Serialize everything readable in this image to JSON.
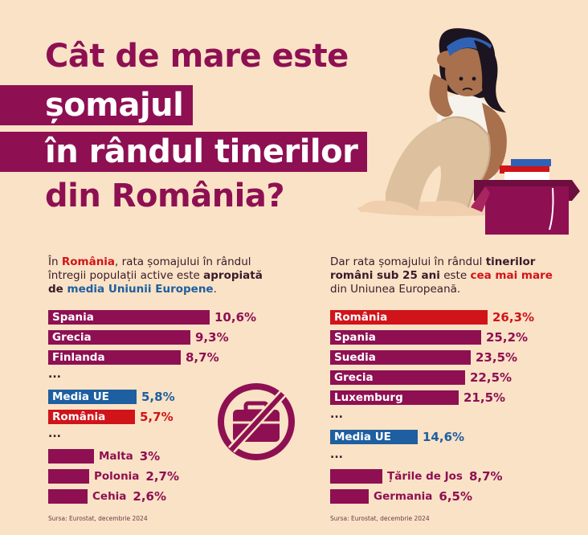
{
  "title": {
    "line1": "Cât de mare este",
    "line2": "șomajul",
    "line3": "în rândul tinerilor",
    "line4": "din România?"
  },
  "colors": {
    "primary": "#8e1052",
    "romania": "#d0141a",
    "eu_average": "#1d5fa0",
    "background": "#fae2c6"
  },
  "left_panel": {
    "intro": {
      "p1": "În ",
      "p2": "România",
      "p3": ", rata șomajului în rândul întregii populații active este ",
      "p4": "apropiată de ",
      "p5": "media Uniunii Europene",
      "p6": "."
    },
    "ellipsis1": "...",
    "ellipsis2": "...",
    "source": "Sursa: Eurostat, decembrie 2024"
  },
  "right_panel": {
    "intro": {
      "p1": "Dar rata șomajului în rândul ",
      "p2": "tinerilor români sub 25 ani",
      "p3": " este ",
      "p4": "cea mai mare",
      "p5": " din Uniunea Europeană."
    },
    "ellipsis1": "...",
    "ellipsis2": "...",
    "source": "Sursa: Eurostat, decembrie 2024"
  },
  "chart_data": [
    {
      "type": "bar",
      "orientation": "horizontal",
      "categories": [
        "Spania",
        "Grecia",
        "Finlanda",
        "Media UE",
        "România",
        "Malta",
        "Polonia",
        "Cehia"
      ],
      "values": [
        10.6,
        9.3,
        8.7,
        5.8,
        5.7,
        3,
        2.7,
        2.6
      ],
      "value_labels": [
        "10,6%",
        "9,3%",
        "8,7%",
        "5,8%",
        "5,7%",
        "3%",
        "2,7%",
        "2,6%"
      ],
      "unit": "%"
    },
    {
      "type": "bar",
      "orientation": "horizontal",
      "categories": [
        "România",
        "Spania",
        "Suedia",
        "Grecia",
        "Luxemburg",
        "Media UE",
        "Țările de Jos",
        "Germania"
      ],
      "values": [
        26.3,
        25.2,
        23.5,
        22.5,
        21.5,
        14.6,
        8.7,
        6.5
      ],
      "value_labels": [
        "26,3%",
        "25,2%",
        "23,5%",
        "22,5%",
        "21,5%",
        "14,6%",
        "8,7%",
        "6,5%"
      ],
      "unit": "%"
    }
  ]
}
